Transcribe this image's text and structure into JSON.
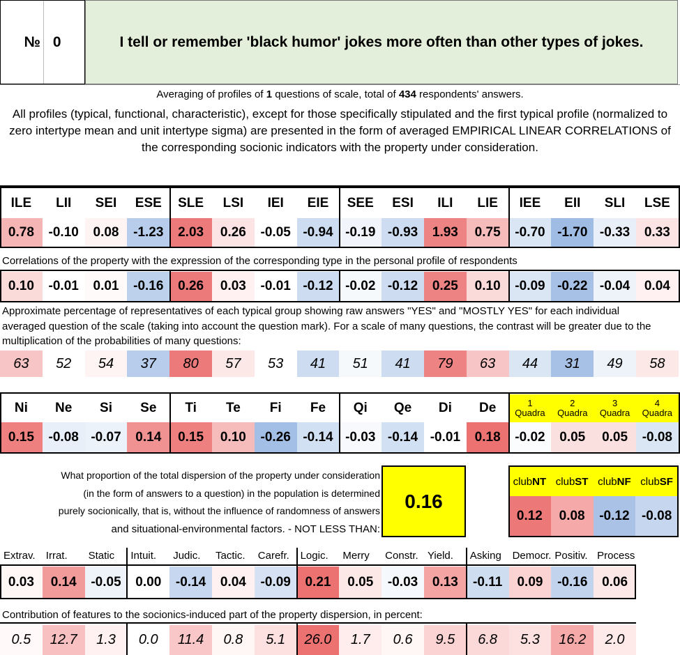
{
  "header": {
    "number_label": "№",
    "number": "0",
    "question": "I tell or remember 'black humor' jokes more often than other types of jokes."
  },
  "averaging": {
    "pre": "Averaging of profiles of ",
    "questions": "1",
    "mid": " questions of scale, total of ",
    "respondents": "434",
    "post": " respondents' answers."
  },
  "note": "All profiles (typical, functional, characteristic), except for those specifically stipulated and the first typical profile (normalized to zero intertype mean and unit intertype sigma) are presented in the form of averaged EMPIRICAL LINEAR CORRELATIONS of the corresponding socionic indicators with the property under consideration.",
  "types": [
    "ILE",
    "LII",
    "SEI",
    "ESE",
    "SLE",
    "LSI",
    "IEI",
    "EIE",
    "SEE",
    "ESI",
    "ILI",
    "LIE",
    "IEE",
    "EII",
    "SLI",
    "LSE"
  ],
  "type_profile": [
    "0.78",
    "-0.10",
    "0.08",
    "-1.23",
    "2.03",
    "0.26",
    "-0.05",
    "-0.94",
    "-0.19",
    "-0.93",
    "1.93",
    "0.75",
    "-0.70",
    "-1.70",
    "-0.33",
    "0.33"
  ],
  "caption_corr": "Correlations of the property with the expression of the corresponding type in the personal profile of respondents",
  "type_corr": [
    "0.10",
    "-0.01",
    "0.01",
    "-0.16",
    "0.26",
    "0.03",
    "-0.01",
    "-0.12",
    "-0.02",
    "-0.12",
    "0.25",
    "0.10",
    "-0.09",
    "-0.22",
    "-0.04",
    "0.04"
  ],
  "caption_pct": "Approximate percentage of representatives of each typical group showing raw answers \"YES\" and \"MOSTLY YES\" for each individual averaged question of the scale (taking into account the question mark). For a scale of many questions, the contrast will be greater due to the multiplication of the probabilities of many questions:",
  "type_pct": [
    "63",
    "52",
    "54",
    "37",
    "80",
    "57",
    "53",
    "41",
    "51",
    "41",
    "79",
    "63",
    "44",
    "31",
    "49",
    "58"
  ],
  "functions": [
    "Ni",
    "Ne",
    "Si",
    "Se",
    "Ti",
    "Te",
    "Fi",
    "Fe",
    "Qi",
    "Qe",
    "Di",
    "De"
  ],
  "quadras": [
    {
      "n": "1",
      "label": "Quadra"
    },
    {
      "n": "2",
      "label": "Quadra"
    },
    {
      "n": "3",
      "label": "Quadra"
    },
    {
      "n": "4",
      "label": "Quadra"
    }
  ],
  "function_values": [
    "0.15",
    "-0.08",
    "-0.07",
    "0.14",
    "0.15",
    "0.10",
    "-0.26",
    "-0.14",
    "-0.03",
    "-0.14",
    "-0.01",
    "0.18",
    "-0.02",
    "0.05",
    "0.05",
    "-0.08"
  ],
  "dispersion": {
    "line1": "What proportion of the total dispersion of the property under consideration",
    "line2": "(in the form of answers to a question) in the population is determined",
    "line3": "purely socionically, that is, without the influence of randomness of answers",
    "line4": "and situational-environmental factors. - NOT LESS THAN:",
    "value": "0.16"
  },
  "clubs": [
    {
      "pre": "club",
      "b": "NT",
      "value": "0.12"
    },
    {
      "pre": "club",
      "b": "ST",
      "value": "0.08"
    },
    {
      "pre": "club",
      "b": "NF",
      "value": "-0.12"
    },
    {
      "pre": "club",
      "b": "SF",
      "value": "-0.08"
    }
  ],
  "traits": [
    "Extrav.",
    "Irrat.",
    "Static",
    "Intuit.",
    "Judic.",
    "Tactic.",
    "Carefr.",
    "Logic.",
    "Merry",
    "Constr.",
    "Yield.",
    "Asking",
    "Democr.",
    "Positiv.",
    "Process"
  ],
  "trait_values": [
    "0.03",
    "0.14",
    "-0.05",
    "0.00",
    "-0.14",
    "0.04",
    "-0.09",
    "0.21",
    "0.05",
    "-0.03",
    "0.13",
    "-0.11",
    "0.09",
    "-0.16",
    "0.06"
  ],
  "caption_contrib": "Contribution of features to the socionics-induced part of the property dispersion, in percent:",
  "trait_contrib": [
    "0.5",
    "12.7",
    "1.3",
    "0.0",
    "11.4",
    "0.8",
    "5.1",
    "26.0",
    "1.7",
    "0.6",
    "9.5",
    "6.8",
    "5.3",
    "16.2",
    "2.0"
  ],
  "colors": {
    "type_profile": [
      "#f5b5b5",
      "#ffffff",
      "#fff4f4",
      "#b8cdeb",
      "#ec7a7a",
      "#fde4e4",
      "#ffffff",
      "#cddcf1",
      "#f1f5fb",
      "#cddcf1",
      "#ee8383",
      "#f6bcbc",
      "#dbe6f5",
      "#9fbce4",
      "#e8eff9",
      "#fde4e4"
    ],
    "type_corr": [
      "#fbdada",
      "#ffffff",
      "#fffafa",
      "#bdd0ec",
      "#ec7a7a",
      "#fff1f1",
      "#ffffff",
      "#cddcf1",
      "#f6f9fc",
      "#cddcf1",
      "#ee8383",
      "#fbdada",
      "#dbe6f5",
      "#a7c1e6",
      "#eef3fa",
      "#fff1f1"
    ],
    "type_pct": [
      "#f7c5c5",
      "#ffffff",
      "#fff4f4",
      "#b8cdeb",
      "#ec7a7a",
      "#fde8e8",
      "#ffffff",
      "#cddcf1",
      "#f6f9fc",
      "#cddcf1",
      "#ee8383",
      "#f7c5c5",
      "#dbe6f5",
      "#a7c1e6",
      "#eef3fa",
      "#fde8e8"
    ],
    "function_values": [
      "#ee8080",
      "#e8eff9",
      "#ecf2fa",
      "#f09292",
      "#ee8080",
      "#f6bcbc",
      "#a4bfe5",
      "#d2e0f3",
      "#f7f9fc",
      "#d2e0f3",
      "#ffffff",
      "#ec7272",
      "#fbfcfe",
      "#fbe0e0",
      "#fbe0e0",
      "#dbe6f5"
    ],
    "clubs": [
      "#ec7878",
      "#f5a9a9",
      "#a9c2e6",
      "#c5d6ee"
    ],
    "trait_values": [
      "#fff6f6",
      "#f29b9b",
      "#eef3fa",
      "#ffffff",
      "#c6d7ef",
      "#fff1f1",
      "#d6e2f3",
      "#ec7272",
      "#fde8e8",
      "#f5f8fc",
      "#f5a4a4",
      "#cfddf1",
      "#fbd3d3",
      "#c1d3ed",
      "#fde8e8"
    ],
    "trait_contrib": [
      "#fff9f9",
      "#f8c0c0",
      "#fff1f1",
      "#ffffff",
      "#f9c7c7",
      "#fff6f6",
      "#fde0e0",
      "#ec7272",
      "#ffeded",
      "#fff6f6",
      "#fbd3d3",
      "#fbd9d9",
      "#fde0e0",
      "#f5a9a9",
      "#ffeaea"
    ]
  }
}
